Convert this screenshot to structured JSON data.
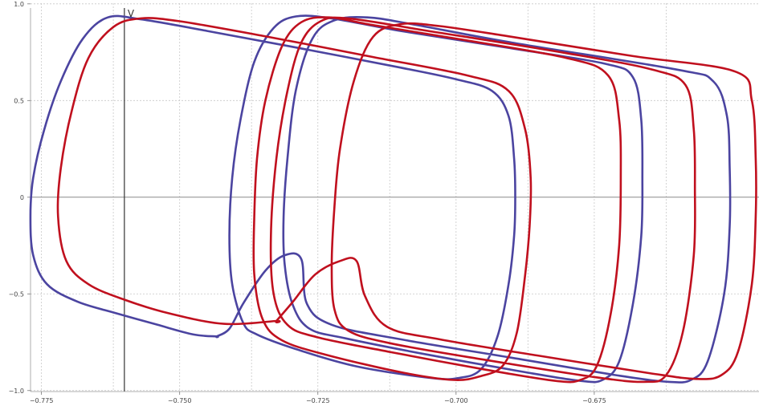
{
  "chart_data": {
    "type": "line",
    "title": "",
    "xlabel": "",
    "ylabel": "V",
    "xlim": [
      -0.7825,
      -0.6452
    ],
    "ylim": [
      -1.03,
      1.02
    ],
    "grid": true,
    "colors": {
      "blue": "#4b44a0",
      "red": "#c0101e",
      "axis": "#333333",
      "grid": "#c8c8c8"
    },
    "x_axis_zero": -0.76,
    "xticks": [
      {
        "value": -0.775,
        "label": "−0.775"
      },
      {
        "value": -0.75,
        "label": "−0.750"
      },
      {
        "value": -0.725,
        "label": "−0.725"
      },
      {
        "value": -0.7,
        "label": "−0.700"
      },
      {
        "value": -0.675,
        "label": "−0.675"
      }
    ],
    "yticks": [
      {
        "value": 1.0,
        "label": "1.0"
      },
      {
        "value": 0.5,
        "label": "0.5"
      },
      {
        "value": 0,
        "label": "0"
      },
      {
        "value": -0.5,
        "label": "−0.5"
      },
      {
        "value": -1.0,
        "label": "−1.0"
      }
    ],
    "extra_gridlines_x": [
      -0.762,
      -0.737,
      -0.712,
      -0.687,
      -0.662
    ],
    "series": [
      {
        "color": "blue",
        "points": [
          [
            -0.7433,
            -0.72
          ],
          [
            -0.7475,
            -0.71
          ],
          [
            -0.754,
            -0.66
          ],
          [
            -0.7615,
            -0.6
          ],
          [
            -0.7685,
            -0.54
          ],
          [
            -0.774,
            -0.45
          ],
          [
            -0.7765,
            -0.3
          ],
          [
            -0.777,
            -0.1
          ],
          [
            -0.7765,
            0.1
          ],
          [
            -0.7745,
            0.35
          ],
          [
            -0.7715,
            0.6
          ],
          [
            -0.7675,
            0.82
          ],
          [
            -0.763,
            0.93
          ],
          [
            -0.757,
            0.92
          ],
          [
            -0.745,
            0.86
          ],
          [
            -0.73,
            0.78
          ],
          [
            -0.71,
            0.67
          ],
          [
            -0.7,
            0.61
          ],
          [
            -0.6935,
            0.55
          ],
          [
            -0.6905,
            0.42
          ],
          [
            -0.6895,
            0.2
          ],
          [
            -0.6893,
            0.0
          ],
          [
            -0.6895,
            -0.2
          ],
          [
            -0.6905,
            -0.45
          ],
          [
            -0.6925,
            -0.72
          ],
          [
            -0.6955,
            -0.89
          ],
          [
            -0.6995,
            -0.935
          ],
          [
            -0.7045,
            -0.935
          ],
          [
            -0.718,
            -0.875
          ],
          [
            -0.729,
            -0.785
          ],
          [
            -0.736,
            -0.71
          ],
          [
            -0.7385,
            -0.65
          ],
          [
            -0.7405,
            -0.45
          ],
          [
            -0.741,
            -0.2
          ],
          [
            -0.7405,
            0.1
          ],
          [
            -0.739,
            0.4
          ],
          [
            -0.7365,
            0.7
          ],
          [
            -0.733,
            0.875
          ],
          [
            -0.729,
            0.935
          ],
          [
            -0.7225,
            0.925
          ],
          [
            -0.71,
            0.86
          ],
          [
            -0.69,
            0.77
          ],
          [
            -0.673,
            0.69
          ],
          [
            -0.668,
            0.62
          ],
          [
            -0.6665,
            0.4
          ],
          [
            -0.6663,
            0.1
          ],
          [
            -0.6665,
            -0.2
          ],
          [
            -0.668,
            -0.55
          ],
          [
            -0.6705,
            -0.85
          ],
          [
            -0.6735,
            -0.945
          ],
          [
            -0.6775,
            -0.95
          ],
          [
            -0.6875,
            -0.905
          ],
          [
            -0.705,
            -0.815
          ],
          [
            -0.72,
            -0.73
          ],
          [
            -0.7265,
            -0.68
          ],
          [
            -0.7295,
            -0.56
          ],
          [
            -0.731,
            -0.35
          ],
          [
            -0.7312,
            -0.1
          ],
          [
            -0.7305,
            0.2
          ],
          [
            -0.729,
            0.55
          ],
          [
            -0.726,
            0.82
          ],
          [
            -0.722,
            0.915
          ],
          [
            -0.716,
            0.93
          ],
          [
            -0.708,
            0.895
          ],
          [
            -0.69,
            0.8
          ],
          [
            -0.66,
            0.66
          ],
          [
            -0.6535,
            0.6
          ],
          [
            -0.651,
            0.42
          ],
          [
            -0.6505,
            0.15
          ],
          [
            -0.6505,
            -0.15
          ],
          [
            -0.6515,
            -0.5
          ],
          [
            -0.6545,
            -0.85
          ],
          [
            -0.6575,
            -0.945
          ],
          [
            -0.6615,
            -0.955
          ],
          [
            -0.67,
            -0.925
          ],
          [
            -0.69,
            -0.83
          ],
          [
            -0.71,
            -0.735
          ],
          [
            -0.7225,
            -0.66
          ],
          [
            -0.727,
            -0.55
          ],
          [
            -0.728,
            -0.32
          ],
          [
            -0.731,
            -0.3
          ],
          [
            -0.7345,
            -0.38
          ],
          [
            -0.7385,
            -0.55
          ],
          [
            -0.741,
            -0.68
          ],
          [
            -0.7433,
            -0.72
          ]
        ]
      },
      {
        "color": "red",
        "points": [
          [
            -0.7325,
            -0.64
          ],
          [
            -0.742,
            -0.655
          ],
          [
            -0.752,
            -0.6
          ],
          [
            -0.76,
            -0.53
          ],
          [
            -0.7665,
            -0.45
          ],
          [
            -0.7705,
            -0.33
          ],
          [
            -0.772,
            -0.1
          ],
          [
            -0.7715,
            0.15
          ],
          [
            -0.7695,
            0.45
          ],
          [
            -0.7665,
            0.72
          ],
          [
            -0.762,
            0.88
          ],
          [
            -0.757,
            0.925
          ],
          [
            -0.75,
            0.91
          ],
          [
            -0.735,
            0.835
          ],
          [
            -0.715,
            0.725
          ],
          [
            -0.698,
            0.63
          ],
          [
            -0.6905,
            0.55
          ],
          [
            -0.6875,
            0.35
          ],
          [
            -0.6865,
            0.1
          ],
          [
            -0.6867,
            -0.15
          ],
          [
            -0.6875,
            -0.4
          ],
          [
            -0.689,
            -0.7
          ],
          [
            -0.6915,
            -0.87
          ],
          [
            -0.6955,
            -0.925
          ],
          [
            -0.7005,
            -0.945
          ],
          [
            -0.71,
            -0.905
          ],
          [
            -0.7235,
            -0.815
          ],
          [
            -0.7315,
            -0.74
          ],
          [
            -0.735,
            -0.63
          ],
          [
            -0.7365,
            -0.4
          ],
          [
            -0.7365,
            -0.1
          ],
          [
            -0.736,
            0.2
          ],
          [
            -0.7345,
            0.5
          ],
          [
            -0.7315,
            0.78
          ],
          [
            -0.728,
            0.905
          ],
          [
            -0.723,
            0.93
          ],
          [
            -0.715,
            0.89
          ],
          [
            -0.7,
            0.82
          ],
          [
            -0.68,
            0.72
          ],
          [
            -0.6725,
            0.63
          ],
          [
            -0.6705,
            0.4
          ],
          [
            -0.6702,
            0.1
          ],
          [
            -0.6705,
            -0.25
          ],
          [
            -0.672,
            -0.6
          ],
          [
            -0.6745,
            -0.87
          ],
          [
            -0.6775,
            -0.945
          ],
          [
            -0.682,
            -0.95
          ],
          [
            -0.695,
            -0.89
          ],
          [
            -0.712,
            -0.8
          ],
          [
            -0.725,
            -0.725
          ],
          [
            -0.7305,
            -0.66
          ],
          [
            -0.733,
            -0.5
          ],
          [
            -0.7335,
            -0.2
          ],
          [
            -0.7325,
            0.2
          ],
          [
            -0.7305,
            0.55
          ],
          [
            -0.728,
            0.8
          ],
          [
            -0.7245,
            0.91
          ],
          [
            -0.7195,
            0.925
          ],
          [
            -0.705,
            0.86
          ],
          [
            -0.68,
            0.745
          ],
          [
            -0.6645,
            0.66
          ],
          [
            -0.6585,
            0.58
          ],
          [
            -0.657,
            0.35
          ],
          [
            -0.6568,
            0.05
          ],
          [
            -0.657,
            -0.3
          ],
          [
            -0.659,
            -0.7
          ],
          [
            -0.662,
            -0.92
          ],
          [
            -0.666,
            -0.955
          ],
          [
            -0.675,
            -0.93
          ],
          [
            -0.695,
            -0.84
          ],
          [
            -0.712,
            -0.755
          ],
          [
            -0.7195,
            -0.69
          ],
          [
            -0.722,
            -0.58
          ],
          [
            -0.7225,
            -0.35
          ],
          [
            -0.722,
            -0.05
          ],
          [
            -0.721,
            0.25
          ],
          [
            -0.7185,
            0.6
          ],
          [
            -0.715,
            0.83
          ],
          [
            -0.71,
            0.895
          ],
          [
            -0.703,
            0.885
          ],
          [
            -0.69,
            0.83
          ],
          [
            -0.668,
            0.73
          ],
          [
            -0.6495,
            0.65
          ],
          [
            -0.6465,
            0.5
          ],
          [
            -0.6458,
            0.2
          ],
          [
            -0.6458,
            -0.1
          ],
          [
            -0.6465,
            -0.45
          ],
          [
            -0.649,
            -0.8
          ],
          [
            -0.652,
            -0.92
          ],
          [
            -0.6565,
            -0.94
          ],
          [
            -0.665,
            -0.91
          ],
          [
            -0.685,
            -0.82
          ],
          [
            -0.703,
            -0.735
          ],
          [
            -0.7125,
            -0.67
          ],
          [
            -0.7165,
            -0.51
          ],
          [
            -0.718,
            -0.33
          ],
          [
            -0.721,
            -0.33
          ],
          [
            -0.7255,
            -0.4
          ],
          [
            -0.7295,
            -0.54
          ],
          [
            -0.7325,
            -0.64
          ]
        ]
      }
    ]
  }
}
